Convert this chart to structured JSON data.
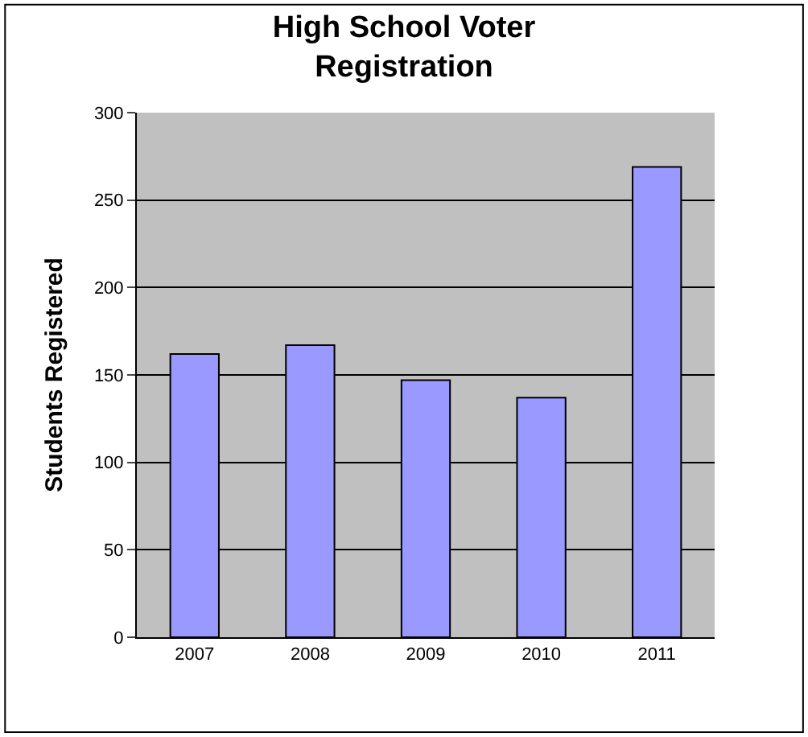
{
  "chart_data": {
    "type": "bar",
    "title": "High School Voter Registration",
    "ylabel": "Students Registered",
    "categories": [
      "2007",
      "2008",
      "2009",
      "2010",
      "2011"
    ],
    "values": [
      162,
      167,
      147,
      137,
      269
    ],
    "color": "#9999ff",
    "ylim": [
      0,
      300
    ],
    "yticks": [
      0,
      50,
      100,
      150,
      200,
      250,
      300
    ],
    "grid": "y"
  }
}
